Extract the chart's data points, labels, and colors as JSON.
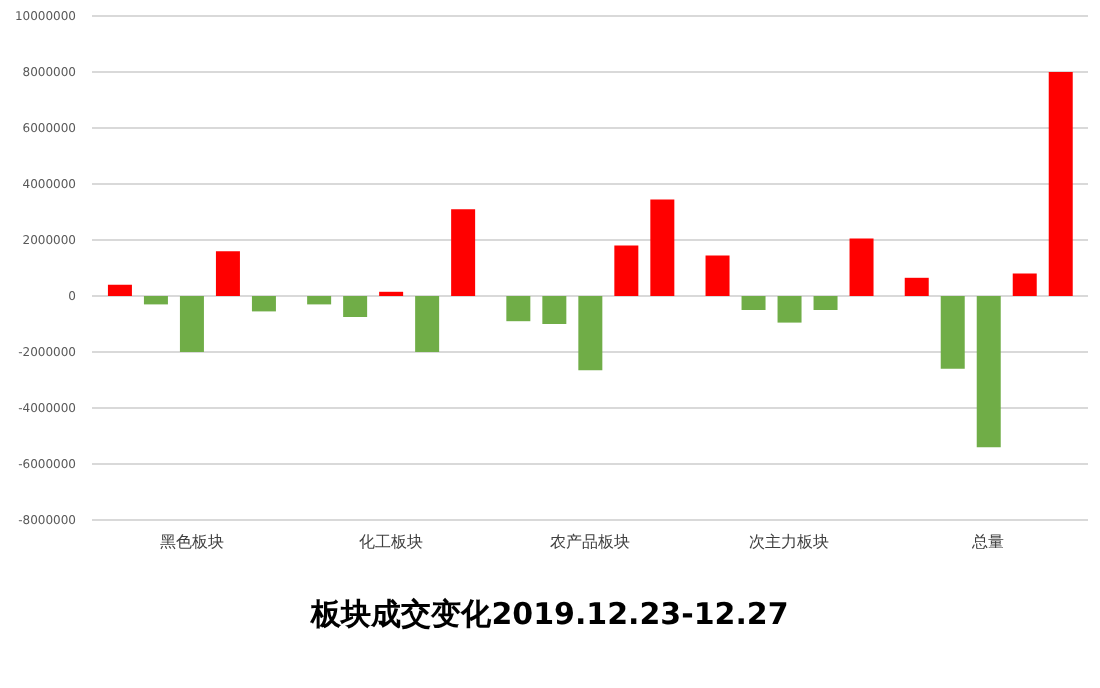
{
  "chart_data": {
    "type": "bar",
    "title": "板块成交变化2019.12.23-12.27",
    "categories": [
      "黑色板块",
      "化工板块",
      "农产品板块",
      "次主力板块",
      "总量"
    ],
    "series": [
      {
        "colors": [
          "#ff0000",
          "#70ad47",
          "#70ad47",
          "#ff0000",
          "#ff0000"
        ],
        "values": [
          400000,
          -300000,
          -900000,
          1450000,
          650000
        ]
      },
      {
        "colors": [
          "#70ad47",
          "#70ad47",
          "#70ad47",
          "#70ad47",
          "#70ad47"
        ],
        "values": [
          -300000,
          -750000,
          -1000000,
          -500000,
          -2600000
        ]
      },
      {
        "colors": [
          "#70ad47",
          "#ff0000",
          "#70ad47",
          "#70ad47",
          "#70ad47"
        ],
        "values": [
          -2000000,
          150000,
          -2650000,
          -950000,
          -5400000
        ]
      },
      {
        "colors": [
          "#ff0000",
          "#70ad47",
          "#ff0000",
          "#70ad47",
          "#ff0000"
        ],
        "values": [
          1600000,
          -2000000,
          1800000,
          -500000,
          800000
        ]
      },
      {
        "colors": [
          "#70ad47",
          "#ff0000",
          "#ff0000",
          "#ff0000",
          "#ff0000"
        ],
        "values": [
          -550000,
          3100000,
          3450000,
          2050000,
          8000000
        ]
      }
    ],
    "ylim": [
      -8000000,
      10000000
    ],
    "yticks": [
      -8000000,
      -6000000,
      -4000000,
      -2000000,
      0,
      2000000,
      4000000,
      6000000,
      8000000,
      10000000
    ],
    "grid": "y",
    "legend": false
  }
}
